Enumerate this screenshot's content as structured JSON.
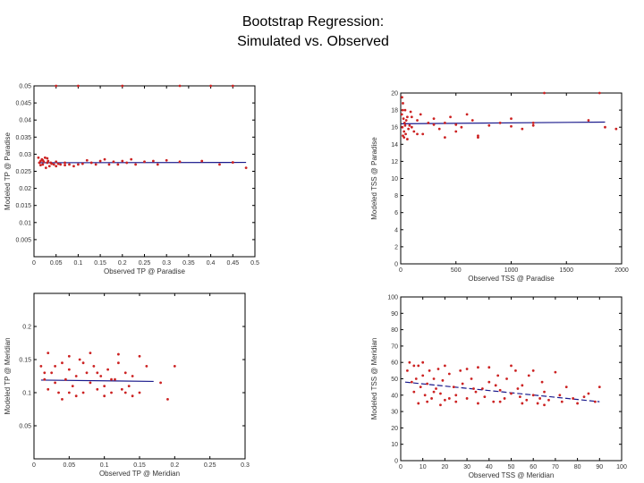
{
  "title": {
    "line1": "Bootstrap Regression:",
    "line2": "Simulated vs. Observed"
  },
  "colors": {
    "points": "#cc2222",
    "fit": "#1a1a8c",
    "axis": "#000000"
  },
  "chart_data": [
    {
      "type": "scatter",
      "xlabel": "Observed TP @ Paradise",
      "ylabel": "Modeled TP @ Paradise",
      "xlim": [
        0,
        0.5
      ],
      "ylim": [
        0,
        0.05
      ],
      "xticks": [
        0,
        0.05,
        0.1,
        0.15,
        0.2,
        0.25,
        0.3,
        0.35,
        0.4,
        0.45,
        0.5
      ],
      "xtick_labels": [
        "0",
        "0.05",
        "0.1",
        "0.15",
        "0.2",
        "0.25",
        "0.3",
        "0.35",
        "0.4",
        "0.45",
        "0.5"
      ],
      "yticks": [
        0.005,
        0.01,
        0.015,
        0.02,
        0.025,
        0.03,
        0.035,
        0.04,
        0.045,
        0.05
      ],
      "ytick_labels": [
        "0.005",
        "0.01",
        "0.015",
        "0.02",
        "0.025",
        "0.03",
        "0.035",
        "0.04",
        "0.045",
        "0.05"
      ],
      "fit_line": {
        "x": [
          0.01,
          0.48
        ],
        "y": [
          0.0275,
          0.0276
        ]
      },
      "points": [
        [
          0.01,
          0.029
        ],
        [
          0.012,
          0.0275
        ],
        [
          0.015,
          0.028
        ],
        [
          0.018,
          0.0285
        ],
        [
          0.02,
          0.027
        ],
        [
          0.022,
          0.0278
        ],
        [
          0.025,
          0.029
        ],
        [
          0.027,
          0.026
        ],
        [
          0.03,
          0.0275
        ],
        [
          0.032,
          0.028
        ],
        [
          0.035,
          0.0265
        ],
        [
          0.038,
          0.0275
        ],
        [
          0.04,
          0.0272
        ],
        [
          0.045,
          0.027
        ],
        [
          0.05,
          0.0265
        ],
        [
          0.055,
          0.0272
        ],
        [
          0.06,
          0.027
        ],
        [
          0.07,
          0.0268
        ],
        [
          0.08,
          0.027
        ],
        [
          0.09,
          0.0265
        ],
        [
          0.1,
          0.027
        ],
        [
          0.11,
          0.0272
        ],
        [
          0.12,
          0.0282
        ],
        [
          0.13,
          0.0275
        ],
        [
          0.14,
          0.027
        ],
        [
          0.15,
          0.028
        ],
        [
          0.16,
          0.0285
        ],
        [
          0.17,
          0.027
        ],
        [
          0.18,
          0.0278
        ],
        [
          0.19,
          0.027
        ],
        [
          0.2,
          0.028
        ],
        [
          0.21,
          0.0275
        ],
        [
          0.22,
          0.0285
        ],
        [
          0.23,
          0.027
        ],
        [
          0.25,
          0.0278
        ],
        [
          0.27,
          0.028
        ],
        [
          0.28,
          0.027
        ],
        [
          0.3,
          0.0282
        ],
        [
          0.33,
          0.0278
        ],
        [
          0.38,
          0.028
        ],
        [
          0.45,
          0.0276
        ],
        [
          0.02,
          0.0282
        ],
        [
          0.015,
          0.0268
        ],
        [
          0.03,
          0.0288
        ],
        [
          0.05,
          0.0278
        ],
        [
          0.07,
          0.0275
        ],
        [
          0.42,
          0.027
        ],
        [
          0.48,
          0.026
        ],
        [
          0.1,
          0.05
        ],
        [
          0.2,
          0.05
        ],
        [
          0.33,
          0.05
        ],
        [
          0.4,
          0.05
        ],
        [
          0.45,
          0.05
        ],
        [
          0.05,
          0.05
        ]
      ]
    },
    {
      "type": "scatter",
      "xlabel": "Observed TSS @ Paradise",
      "ylabel": "Modeled TSS @ Paradise",
      "xlim": [
        0,
        2000
      ],
      "ylim": [
        0,
        20
      ],
      "xticks": [
        0,
        500,
        1000,
        1500,
        2000
      ],
      "xtick_labels": [
        "0",
        "500",
        "1000",
        "1500",
        "2000"
      ],
      "yticks": [
        0,
        2,
        4,
        6,
        8,
        10,
        12,
        14,
        16,
        18,
        20
      ],
      "ytick_labels": [
        "0",
        "2",
        "4",
        "6",
        "8",
        "10",
        "12",
        "14",
        "16",
        "18",
        "20"
      ],
      "fit_line": {
        "x": [
          5,
          1850
        ],
        "y": [
          16.4,
          16.6
        ]
      },
      "points": [
        [
          10,
          17.5
        ],
        [
          15,
          16
        ],
        [
          20,
          15
        ],
        [
          25,
          17
        ],
        [
          30,
          15.5
        ],
        [
          35,
          16.5
        ],
        [
          40,
          18
        ],
        [
          45,
          15.2
        ],
        [
          50,
          16.8
        ],
        [
          60,
          17.2
        ],
        [
          70,
          15.8
        ],
        [
          80,
          16.2
        ],
        [
          90,
          17.8
        ],
        [
          100,
          16
        ],
        [
          120,
          15.5
        ],
        [
          150,
          16.8
        ],
        [
          180,
          17.5
        ],
        [
          200,
          15.2
        ],
        [
          250,
          16.5
        ],
        [
          300,
          17
        ],
        [
          350,
          15.8
        ],
        [
          400,
          16.5
        ],
        [
          450,
          17.2
        ],
        [
          500,
          15.5
        ],
        [
          550,
          16
        ],
        [
          600,
          17.5
        ],
        [
          650,
          16.8
        ],
        [
          700,
          15
        ],
        [
          800,
          16.2
        ],
        [
          900,
          16.5
        ],
        [
          1000,
          17
        ],
        [
          1100,
          15.8
        ],
        [
          1200,
          16.5
        ],
        [
          1700,
          16.8
        ],
        [
          1850,
          16
        ],
        [
          1950,
          15.8
        ],
        [
          12,
          19.5
        ],
        [
          20,
          18.8
        ],
        [
          18,
          18
        ],
        [
          30,
          14.8
        ],
        [
          60,
          14.6
        ],
        [
          400,
          14.8
        ],
        [
          700,
          14.8
        ],
        [
          40,
          16.2
        ],
        [
          100,
          17.2
        ],
        [
          1000,
          16.1
        ],
        [
          500,
          16.3
        ],
        [
          1200,
          16.2
        ],
        [
          150,
          15.2
        ],
        [
          300,
          16.3
        ],
        [
          1300,
          20
        ],
        [
          1800,
          20
        ]
      ]
    },
    {
      "type": "scatter",
      "xlabel": "Observed TP @ Meridian",
      "ylabel": "Modeled TP @ Meridian",
      "xlim": [
        0,
        0.3
      ],
      "ylim": [
        0,
        0.25
      ],
      "xticks": [
        0,
        0.05,
        0.1,
        0.15,
        0.2,
        0.25,
        0.3
      ],
      "xtick_labels": [
        "0",
        "0.05",
        "0.1",
        "0.15",
        "0.2",
        "0.25",
        "0.3"
      ],
      "yticks": [
        0.05,
        0.1,
        0.15,
        0.2
      ],
      "ytick_labels": [
        "0.05",
        "0.1",
        "0.15",
        "0.2"
      ],
      "fit_line": {
        "x": [
          0.01,
          0.17
        ],
        "y": [
          0.119,
          0.117
        ]
      },
      "points": [
        [
          0.01,
          0.14
        ],
        [
          0.015,
          0.12
        ],
        [
          0.02,
          0.105
        ],
        [
          0.025,
          0.13
        ],
        [
          0.03,
          0.115
        ],
        [
          0.035,
          0.1
        ],
        [
          0.04,
          0.145
        ],
        [
          0.045,
          0.12
        ],
        [
          0.05,
          0.135
        ],
        [
          0.055,
          0.11
        ],
        [
          0.06,
          0.125
        ],
        [
          0.065,
          0.15
        ],
        [
          0.07,
          0.1
        ],
        [
          0.075,
          0.13
        ],
        [
          0.08,
          0.115
        ],
        [
          0.085,
          0.14
        ],
        [
          0.09,
          0.105
        ],
        [
          0.095,
          0.125
        ],
        [
          0.1,
          0.11
        ],
        [
          0.105,
          0.135
        ],
        [
          0.11,
          0.1
        ],
        [
          0.115,
          0.12
        ],
        [
          0.12,
          0.145
        ],
        [
          0.125,
          0.105
        ],
        [
          0.13,
          0.13
        ],
        [
          0.135,
          0.11
        ],
        [
          0.14,
          0.125
        ],
        [
          0.15,
          0.1
        ],
        [
          0.16,
          0.14
        ],
        [
          0.18,
          0.115
        ],
        [
          0.19,
          0.09
        ],
        [
          0.2,
          0.14
        ],
        [
          0.02,
          0.16
        ],
        [
          0.05,
          0.155
        ],
        [
          0.08,
          0.16
        ],
        [
          0.12,
          0.158
        ],
        [
          0.15,
          0.155
        ],
        [
          0.06,
          0.095
        ],
        [
          0.1,
          0.095
        ],
        [
          0.14,
          0.095
        ],
        [
          0.03,
          0.14
        ],
        [
          0.07,
          0.145
        ],
        [
          0.09,
          0.13
        ],
        [
          0.11,
          0.12
        ],
        [
          0.13,
          0.1
        ],
        [
          0.05,
          0.1
        ],
        [
          0.04,
          0.09
        ],
        [
          0.015,
          0.13
        ]
      ]
    },
    {
      "type": "scatter",
      "xlabel": "Observed TSS @ Meridian",
      "ylabel": "Modeled TSS @ Meridian",
      "xlim": [
        0,
        100
      ],
      "ylim": [
        0,
        100
      ],
      "xticks": [
        0,
        10,
        20,
        30,
        40,
        50,
        60,
        70,
        80,
        90,
        100
      ],
      "xtick_labels": [
        "0",
        "10",
        "20",
        "30",
        "40",
        "50",
        "60",
        "70",
        "80",
        "90",
        "100"
      ],
      "yticks": [
        0,
        10,
        20,
        30,
        40,
        50,
        60,
        70,
        80,
        90,
        100
      ],
      "ytick_labels": [
        "0",
        "10",
        "20",
        "30",
        "40",
        "50",
        "60",
        "70",
        "80",
        "90",
        "100"
      ],
      "fit_line": {
        "x": [
          2,
          90
        ],
        "y": [
          48,
          36
        ]
      },
      "points": [
        [
          3,
          55
        ],
        [
          5,
          48
        ],
        [
          6,
          42
        ],
        [
          7,
          50
        ],
        [
          8,
          58
        ],
        [
          9,
          45
        ],
        [
          10,
          52
        ],
        [
          11,
          40
        ],
        [
          12,
          47
        ],
        [
          13,
          55
        ],
        [
          14,
          38
        ],
        [
          15,
          50
        ],
        [
          16,
          44
        ],
        [
          17,
          56
        ],
        [
          18,
          41
        ],
        [
          19,
          49
        ],
        [
          20,
          37
        ],
        [
          22,
          53
        ],
        [
          24,
          45
        ],
        [
          25,
          40
        ],
        [
          27,
          55
        ],
        [
          28,
          47
        ],
        [
          30,
          38
        ],
        [
          32,
          50
        ],
        [
          34,
          42
        ],
        [
          35,
          57
        ],
        [
          37,
          44
        ],
        [
          38,
          39
        ],
        [
          40,
          48
        ],
        [
          42,
          36
        ],
        [
          44,
          52
        ],
        [
          45,
          43
        ],
        [
          47,
          38
        ],
        [
          48,
          50
        ],
        [
          50,
          41
        ],
        [
          52,
          55
        ],
        [
          54,
          39
        ],
        [
          55,
          46
        ],
        [
          57,
          37
        ],
        [
          58,
          52
        ],
        [
          60,
          40
        ],
        [
          62,
          35
        ],
        [
          64,
          48
        ],
        [
          65,
          42
        ],
        [
          67,
          37
        ],
        [
          70,
          54
        ],
        [
          72,
          40
        ],
        [
          75,
          45
        ],
        [
          78,
          38
        ],
        [
          80,
          35
        ],
        [
          85,
          41
        ],
        [
          88,
          36
        ],
        [
          4,
          60
        ],
        [
          6,
          58
        ],
        [
          10,
          60
        ],
        [
          20,
          58
        ],
        [
          30,
          56
        ],
        [
          40,
          57
        ],
        [
          50,
          58
        ],
        [
          60,
          55
        ],
        [
          12,
          36
        ],
        [
          25,
          36
        ],
        [
          35,
          35
        ],
        [
          45,
          36
        ],
        [
          55,
          35
        ],
        [
          65,
          34
        ],
        [
          15,
          42
        ],
        [
          22,
          38
        ],
        [
          33,
          44
        ],
        [
          43,
          46
        ],
        [
          53,
          44
        ],
        [
          63,
          38
        ],
        [
          73,
          36
        ],
        [
          83,
          39
        ],
        [
          90,
          45
        ],
        [
          8,
          35
        ],
        [
          18,
          34
        ]
      ]
    }
  ]
}
